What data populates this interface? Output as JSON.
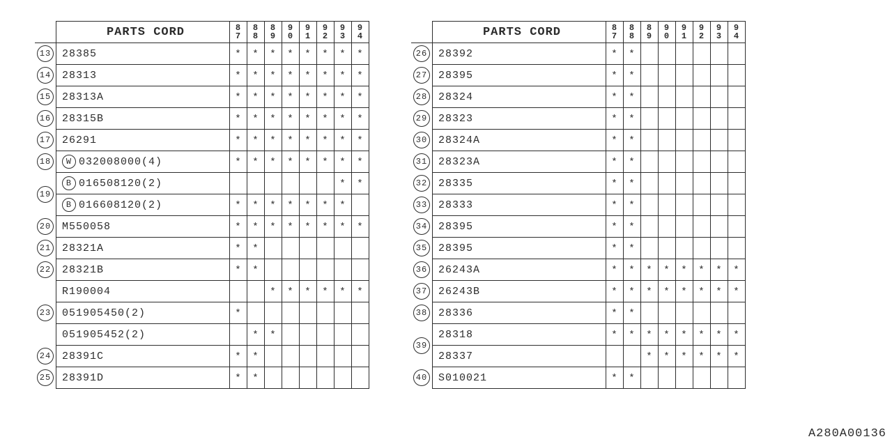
{
  "header_title": "PARTS CORD",
  "years": [
    "87",
    "88",
    "89",
    "90",
    "91",
    "92",
    "93",
    "94"
  ],
  "footer": "A280A00136",
  "left": [
    {
      "idx": "13",
      "code": "28385",
      "marks": [
        1,
        1,
        1,
        1,
        1,
        1,
        1,
        1
      ]
    },
    {
      "idx": "14",
      "code": "28313",
      "marks": [
        1,
        1,
        1,
        1,
        1,
        1,
        1,
        1
      ]
    },
    {
      "idx": "15",
      "code": "28313A",
      "marks": [
        1,
        1,
        1,
        1,
        1,
        1,
        1,
        1
      ]
    },
    {
      "idx": "16",
      "code": "28315B",
      "marks": [
        1,
        1,
        1,
        1,
        1,
        1,
        1,
        1
      ]
    },
    {
      "idx": "17",
      "code": "26291",
      "marks": [
        1,
        1,
        1,
        1,
        1,
        1,
        1,
        1
      ]
    },
    {
      "idx": "18",
      "prefix": "W",
      "code": "032008000(4)",
      "marks": [
        1,
        1,
        1,
        1,
        1,
        1,
        1,
        1
      ]
    },
    {
      "idx": "19",
      "rowspan": 2,
      "prefix": "B",
      "code": "016508120(2)",
      "marks": [
        0,
        0,
        0,
        0,
        0,
        0,
        1,
        1
      ]
    },
    {
      "prefix": "B",
      "code": "016608120(2)",
      "marks": [
        1,
        1,
        1,
        1,
        1,
        1,
        1,
        0
      ]
    },
    {
      "idx": "20",
      "code": "M550058",
      "marks": [
        1,
        1,
        1,
        1,
        1,
        1,
        1,
        1
      ]
    },
    {
      "idx": "21",
      "code": "28321A",
      "marks": [
        1,
        1,
        0,
        0,
        0,
        0,
        0,
        0
      ]
    },
    {
      "idx": "22",
      "code": "28321B",
      "marks": [
        1,
        1,
        0,
        0,
        0,
        0,
        0,
        0
      ]
    },
    {
      "idx": "23",
      "rowspan": 3,
      "code": "R190004",
      "marks": [
        0,
        0,
        1,
        1,
        1,
        1,
        1,
        1
      ]
    },
    {
      "code": "051905450(2)",
      "marks": [
        1,
        0,
        0,
        0,
        0,
        0,
        0,
        0
      ]
    },
    {
      "code": "051905452(2)",
      "marks": [
        0,
        1,
        1,
        0,
        0,
        0,
        0,
        0
      ]
    },
    {
      "idx": "24",
      "code": "28391C",
      "marks": [
        1,
        1,
        0,
        0,
        0,
        0,
        0,
        0
      ]
    },
    {
      "idx": "25",
      "code": "28391D",
      "marks": [
        1,
        1,
        0,
        0,
        0,
        0,
        0,
        0
      ]
    }
  ],
  "right": [
    {
      "idx": "26",
      "code": "28392",
      "marks": [
        1,
        1,
        0,
        0,
        0,
        0,
        0,
        0
      ]
    },
    {
      "idx": "27",
      "code": "28395",
      "marks": [
        1,
        1,
        0,
        0,
        0,
        0,
        0,
        0
      ]
    },
    {
      "idx": "28",
      "code": "28324",
      "marks": [
        1,
        1,
        0,
        0,
        0,
        0,
        0,
        0
      ]
    },
    {
      "idx": "29",
      "code": "28323",
      "marks": [
        1,
        1,
        0,
        0,
        0,
        0,
        0,
        0
      ]
    },
    {
      "idx": "30",
      "code": "28324A",
      "marks": [
        1,
        1,
        0,
        0,
        0,
        0,
        0,
        0
      ]
    },
    {
      "idx": "31",
      "code": "28323A",
      "marks": [
        1,
        1,
        0,
        0,
        0,
        0,
        0,
        0
      ]
    },
    {
      "idx": "32",
      "code": "28335",
      "marks": [
        1,
        1,
        0,
        0,
        0,
        0,
        0,
        0
      ]
    },
    {
      "idx": "33",
      "code": "28333",
      "marks": [
        1,
        1,
        0,
        0,
        0,
        0,
        0,
        0
      ]
    },
    {
      "idx": "34",
      "code": "28395",
      "marks": [
        1,
        1,
        0,
        0,
        0,
        0,
        0,
        0
      ]
    },
    {
      "idx": "35",
      "code": "28395",
      "marks": [
        1,
        1,
        0,
        0,
        0,
        0,
        0,
        0
      ]
    },
    {
      "idx": "36",
      "code": "26243A",
      "marks": [
        1,
        1,
        1,
        1,
        1,
        1,
        1,
        1
      ]
    },
    {
      "idx": "37",
      "code": "26243B",
      "marks": [
        1,
        1,
        1,
        1,
        1,
        1,
        1,
        1
      ]
    },
    {
      "idx": "38",
      "code": "28336",
      "marks": [
        1,
        1,
        0,
        0,
        0,
        0,
        0,
        0
      ]
    },
    {
      "idx": "39",
      "rowspan": 2,
      "code": "28318",
      "marks": [
        1,
        1,
        1,
        1,
        1,
        1,
        1,
        1
      ]
    },
    {
      "code": "28337",
      "marks": [
        0,
        0,
        1,
        1,
        1,
        1,
        1,
        1
      ]
    },
    {
      "idx": "40",
      "code": "S010021",
      "marks": [
        1,
        1,
        0,
        0,
        0,
        0,
        0,
        0
      ]
    }
  ]
}
